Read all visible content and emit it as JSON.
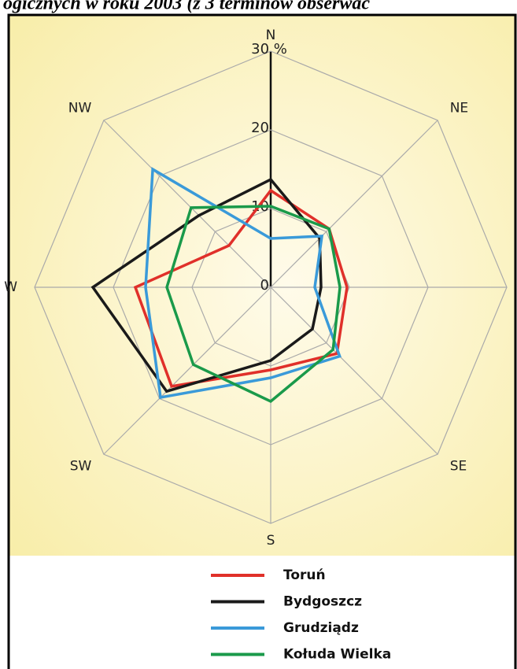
{
  "chart_data": {
    "type": "radar",
    "title": "ogicznych w roku 2003 (z 3 terminów obserwac",
    "categories": [
      "N",
      "NE",
      "E",
      "SE",
      "S",
      "SW",
      "W",
      "NW"
    ],
    "rlim": [
      0,
      30
    ],
    "rticks": [
      0,
      10,
      20,
      {
        "value": 30,
        "label": "30 %"
      }
    ],
    "grid": true,
    "legend": "bottom",
    "series": [
      {
        "name": "Toruń",
        "color": "#e0302a",
        "values": [
          12.3,
          10.5,
          9.7,
          11.9,
          10.5,
          17.8,
          17.2,
          7.5
        ]
      },
      {
        "name": "Bydgoszcz",
        "color": "#1a1a1a",
        "values": [
          13.7,
          8.8,
          6.4,
          7.5,
          9.3,
          18.7,
          22.6,
          12.9
        ]
      },
      {
        "name": "Grudziądz",
        "color": "#3a9ad9",
        "values": [
          6.2,
          9.2,
          5.6,
          12.4,
          11.5,
          19.8,
          15.9,
          21.2
        ]
      },
      {
        "name": "Kołuda Wielka",
        "color": "#1a9a4a",
        "values": [
          10.3,
          10.5,
          8.8,
          11.2,
          14.5,
          13.9,
          13.2,
          14.3
        ]
      }
    ]
  }
}
